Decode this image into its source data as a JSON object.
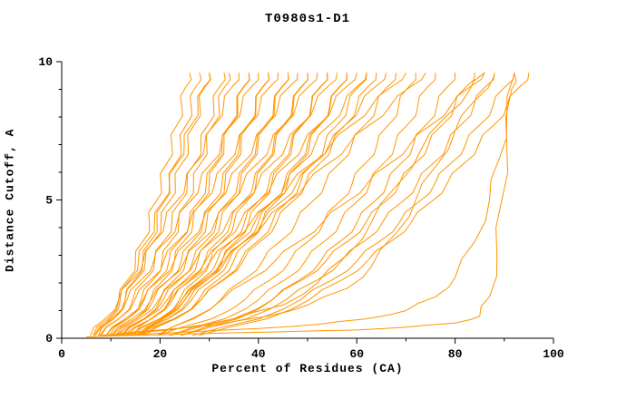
{
  "chart_data": {
    "type": "line",
    "title": "T0980s1-D1",
    "xlabel": "Percent of Residues (CA)",
    "ylabel": "Distance Cutoff, A",
    "xlim": [
      0,
      100
    ],
    "ylim": [
      0,
      10
    ],
    "x_ticks_major": [
      0,
      20,
      40,
      60,
      80,
      100
    ],
    "x_minor_step": 10,
    "y_ticks_major": [
      0,
      5,
      10
    ],
    "y_minor_step": 1,
    "line_color": "#ff9500",
    "axis_color": "#000000",
    "zigzag_amplitude": 0.7,
    "y_common": [
      0.1,
      0.7,
      1.4,
      2.1,
      2.8,
      3.5,
      4.2,
      4.9,
      5.6,
      6.3,
      7.0,
      7.7,
      8.4,
      9.1,
      9.6
    ],
    "series": [
      {
        "x": [
          6.4,
          9.4,
          11.6,
          13.4,
          15.0,
          16.5,
          17.8,
          19.0,
          20.2,
          21.3,
          22.4,
          23.4,
          24.4,
          25.3,
          26.0
        ]
      },
      {
        "x": [
          7.4,
          10.6,
          12.9,
          14.8,
          16.5,
          18.0,
          19.4,
          20.7,
          21.9,
          23.1,
          24.2,
          25.3,
          26.3,
          27.3,
          28.0
        ]
      },
      {
        "x": [
          6.6,
          10.2,
          12.9,
          15.1,
          17.0,
          18.7,
          20.2,
          21.7,
          23.1,
          24.4,
          25.7,
          26.9,
          28.1,
          29.2,
          30.0
        ]
      },
      {
        "x": [
          7.6,
          9.8,
          11.9,
          13.8,
          15.6,
          17.3,
          18.9,
          20.4,
          21.9,
          23.4,
          24.9,
          26.3,
          27.7,
          29.0,
          30.0
        ]
      },
      {
        "x": [
          7.8,
          11.6,
          14.5,
          16.9,
          18.9,
          20.7,
          22.4,
          24.0,
          25.5,
          27.0,
          28.3,
          29.7,
          30.9,
          32.1,
          33.0
        ]
      },
      {
        "x": [
          9.7,
          13.4,
          16.2,
          18.5,
          20.4,
          22.2,
          23.8,
          25.4,
          26.8,
          28.2,
          29.5,
          30.8,
          32.0,
          33.2,
          34.0
        ]
      },
      {
        "x": [
          5.8,
          8.8,
          11.6,
          14.2,
          16.6,
          18.8,
          21.0,
          23.1,
          25.2,
          27.1,
          29.1,
          31.0,
          32.9,
          34.7,
          36.0
        ]
      },
      {
        "x": [
          9.0,
          13.4,
          16.8,
          19.5,
          21.8,
          23.9,
          25.9,
          27.7,
          29.4,
          31.1,
          32.6,
          34.2,
          35.6,
          37.0,
          38.0
        ]
      },
      {
        "x": [
          10.9,
          15.0,
          18.1,
          20.7,
          22.9,
          24.8,
          26.7,
          28.4,
          30.0,
          31.5,
          33.0,
          34.4,
          35.8,
          37.1,
          38.0
        ]
      },
      {
        "x": [
          6.9,
          10.2,
          13.3,
          16.1,
          18.7,
          21.2,
          23.5,
          25.9,
          28.1,
          30.3,
          32.4,
          34.5,
          36.6,
          38.6,
          40.0
        ]
      },
      {
        "x": [
          10.2,
          15.1,
          18.7,
          21.7,
          24.3,
          26.6,
          28.7,
          30.7,
          32.6,
          34.4,
          36.1,
          37.8,
          39.4,
          40.9,
          42.0
        ]
      },
      {
        "x": [
          12.1,
          16.7,
          20.1,
          22.9,
          25.3,
          27.5,
          29.5,
          31.4,
          33.2,
          34.9,
          36.5,
          38.0,
          39.5,
          41.0,
          42.0
        ]
      },
      {
        "x": [
          8.0,
          11.6,
          14.9,
          18.0,
          20.8,
          23.5,
          26.1,
          28.6,
          31.1,
          33.4,
          35.7,
          38.0,
          40.3,
          42.4,
          44.0
        ]
      },
      {
        "x": [
          11.4,
          16.7,
          20.7,
          23.9,
          26.7,
          29.2,
          31.5,
          33.7,
          35.8,
          37.7,
          39.6,
          41.4,
          43.1,
          44.8,
          46.0
        ]
      },
      {
        "x": [
          13.3,
          18.3,
          22.0,
          25.1,
          27.7,
          30.1,
          32.3,
          34.4,
          36.3,
          38.2,
          39.9,
          41.7,
          43.3,
          44.9,
          46.0
        ]
      },
      {
        "x": [
          9.0,
          12.9,
          16.6,
          19.8,
          22.9,
          25.8,
          28.6,
          31.4,
          34.0,
          36.6,
          39.1,
          41.5,
          44.0,
          46.3,
          48.0
        ]
      },
      {
        "x": [
          12.6,
          18.3,
          22.6,
          26.1,
          29.1,
          31.8,
          34.4,
          36.7,
          39.0,
          41.1,
          43.1,
          45.0,
          46.9,
          48.7,
          50.0
        ]
      },
      {
        "x": [
          14.5,
          19.9,
          24.0,
          27.3,
          30.2,
          32.7,
          35.1,
          37.4,
          39.5,
          41.5,
          43.4,
          45.3,
          47.1,
          48.8,
          50.0
        ]
      },
      {
        "x": [
          10.1,
          14.3,
          18.2,
          21.7,
          25.0,
          28.2,
          31.2,
          34.1,
          36.9,
          39.7,
          42.4,
          45.0,
          47.7,
          50.2,
          52.0
        ]
      },
      {
        "x": [
          13.8,
          19.9,
          24.5,
          28.3,
          31.6,
          34.5,
          37.2,
          39.7,
          42.1,
          44.4,
          46.6,
          48.7,
          50.7,
          52.6,
          54.0
        ]
      },
      {
        "x": [
          15.7,
          21.5,
          25.9,
          29.5,
          32.6,
          35.4,
          38.0,
          40.4,
          42.7,
          44.9,
          46.9,
          48.9,
          50.8,
          52.7,
          54.0
        ]
      },
      {
        "x": [
          11.2,
          15.7,
          19.8,
          23.6,
          27.2,
          30.5,
          33.7,
          36.9,
          39.9,
          42.8,
          45.7,
          48.5,
          51.4,
          54.1,
          56.0
        ]
      },
      {
        "x": [
          15.0,
          21.6,
          26.5,
          30.5,
          34.0,
          37.1,
          40.0,
          42.7,
          45.3,
          47.7,
          50.0,
          52.3,
          54.5,
          56.5,
          58.0
        ]
      },
      {
        "x": [
          16.9,
          23.2,
          27.9,
          31.7,
          35.0,
          38.0,
          40.8,
          43.4,
          45.9,
          48.2,
          50.4,
          52.5,
          54.6,
          56.6,
          58.0
        ]
      },
      {
        "x": [
          12.3,
          17.0,
          21.5,
          25.5,
          29.3,
          32.9,
          36.3,
          39.6,
          42.9,
          46.0,
          49.1,
          52.1,
          55.1,
          57.9,
          60.0
        ]
      },
      {
        "x": [
          16.2,
          23.2,
          28.4,
          32.7,
          36.4,
          39.8,
          42.8,
          45.7,
          48.5,
          51.1,
          53.5,
          55.9,
          58.2,
          60.4,
          62.0
        ]
      },
      {
        "x": [
          16.2,
          20.8,
          25.1,
          28.9,
          32.5,
          36.0,
          39.3,
          42.5,
          45.6,
          48.6,
          51.5,
          54.4,
          57.3,
          60.0,
          62.0
        ]
      },
      {
        "x": [
          15.4,
          22.8,
          28.4,
          32.9,
          36.9,
          40.4,
          43.7,
          46.7,
          49.6,
          52.4,
          55.0,
          57.6,
          60.0,
          62.3,
          64.0
        ]
      },
      {
        "x": [
          15.4,
          20.4,
          25.1,
          29.4,
          33.4,
          37.2,
          40.8,
          44.4,
          47.8,
          51.1,
          54.4,
          57.6,
          60.7,
          63.8,
          66.0
        ]
      },
      {
        "x": [
          19.4,
          26.8,
          32.4,
          36.9,
          40.9,
          44.4,
          47.7,
          50.7,
          53.6,
          56.4,
          59.0,
          61.6,
          64.0,
          66.3,
          68.0
        ]
      },
      {
        "x": [
          19.7,
          30.5,
          37.3,
          42.3,
          46.4,
          50.1,
          53.3,
          56.3,
          59.1,
          61.6,
          64.1,
          66.4,
          68.5,
          70.6,
          72.0
        ]
      },
      {
        "x": [
          21.9,
          33.1,
          40.1,
          45.3,
          49.6,
          53.4,
          56.7,
          59.8,
          62.7,
          65.3,
          67.8,
          70.2,
          72.4,
          74.5,
          76.0
        ]
      },
      {
        "x": [
          24.2,
          35.7,
          42.9,
          48.3,
          52.7,
          56.6,
          60.1,
          63.3,
          66.2,
          68.9,
          71.5,
          74.0,
          76.3,
          78.5,
          80.0
        ]
      },
      {
        "x": [
          22.1,
          34.9,
          42.9,
          48.8,
          53.8,
          58.1,
          61.9,
          65.5,
          68.7,
          71.7,
          74.6,
          77.3,
          79.9,
          82.3,
          84.0
        ]
      },
      {
        "x": [
          24.3,
          37.5,
          45.7,
          51.9,
          56.9,
          61.4,
          65.3,
          69.0,
          72.3,
          75.4,
          78.4,
          81.1,
          83.8,
          86.2,
          88.0
        ]
      },
      {
        "x": [
          26.6,
          40.1,
          48.6,
          54.9,
          60.1,
          64.6,
          68.7,
          72.4,
          75.9,
          79.0,
          82.1,
          84.9,
          87.7,
          90.2,
          92.0
        ]
      },
      {
        "x": [
          27.9,
          41.7,
          50.4,
          56.9,
          62.2,
          66.9,
          71.1,
          74.9,
          78.4,
          81.7,
          84.8,
          87.8,
          90.5,
          93.2,
          95.0
        ]
      },
      {
        "x": [
          14.6,
          18.1,
          22.2,
          26.3,
          30.3,
          34.4,
          38.5,
          42.6,
          46.6,
          50.7,
          54.8,
          58.9,
          63.0,
          67.1,
          70.0
        ]
      },
      {
        "x": [
          16.6,
          20.2,
          24.5,
          28.7,
          33.0,
          37.2,
          41.4,
          45.6,
          49.8,
          54.1,
          58.3,
          62.5,
          66.8,
          71.0,
          74.0
        ]
      },
      {
        "x": [
          19.8,
          26.4,
          32.6,
          38.1,
          43.4,
          48.3,
          53.1,
          57.7,
          62.2,
          66.6,
          70.8,
          75.0,
          79.1,
          83.1,
          86.0
        ]
      },
      {
        "points": [
          [
            5,
            0.05
          ],
          [
            14,
            0.1
          ],
          [
            24,
            0.15
          ],
          [
            36,
            0.2
          ],
          [
            48,
            0.25
          ],
          [
            60,
            0.3
          ],
          [
            70,
            0.4
          ],
          [
            80,
            0.55
          ],
          [
            85,
            0.8
          ],
          [
            87,
            1.5
          ],
          [
            88.5,
            3
          ],
          [
            89.5,
            5
          ],
          [
            90.5,
            7
          ],
          [
            91.5,
            9
          ],
          [
            92,
            9.6
          ]
        ]
      },
      {
        "points": [
          [
            6,
            0.05
          ],
          [
            16,
            0.15
          ],
          [
            28,
            0.25
          ],
          [
            40,
            0.35
          ],
          [
            52,
            0.5
          ],
          [
            62,
            0.7
          ],
          [
            70,
            1.0
          ],
          [
            76,
            1.5
          ],
          [
            80,
            2.2
          ],
          [
            84,
            3.5
          ],
          [
            87,
            5
          ],
          [
            89,
            6.5
          ],
          [
            90.5,
            8
          ],
          [
            92,
            9.5
          ]
        ]
      },
      {
        "points": [
          [
            8,
            0.1
          ],
          [
            20,
            0.3
          ],
          [
            32,
            0.5
          ],
          [
            42,
            0.8
          ],
          [
            50,
            1.2
          ],
          [
            58,
            1.8
          ],
          [
            63,
            2.6
          ],
          [
            68,
            3.8
          ],
          [
            72,
            5
          ],
          [
            76,
            6.2
          ],
          [
            80,
            7.5
          ],
          [
            84,
            8.6
          ],
          [
            88,
            9.5
          ]
        ]
      },
      {
        "points": [
          [
            10,
            0.1
          ],
          [
            22,
            0.3
          ],
          [
            35,
            0.7
          ],
          [
            45,
            1.2
          ],
          [
            52,
            2
          ],
          [
            58,
            3
          ],
          [
            63,
            4.2
          ],
          [
            68,
            5.5
          ],
          [
            73,
            6.8
          ],
          [
            78,
            8
          ],
          [
            83,
            9
          ],
          [
            86,
            9.6
          ]
        ]
      }
    ]
  }
}
